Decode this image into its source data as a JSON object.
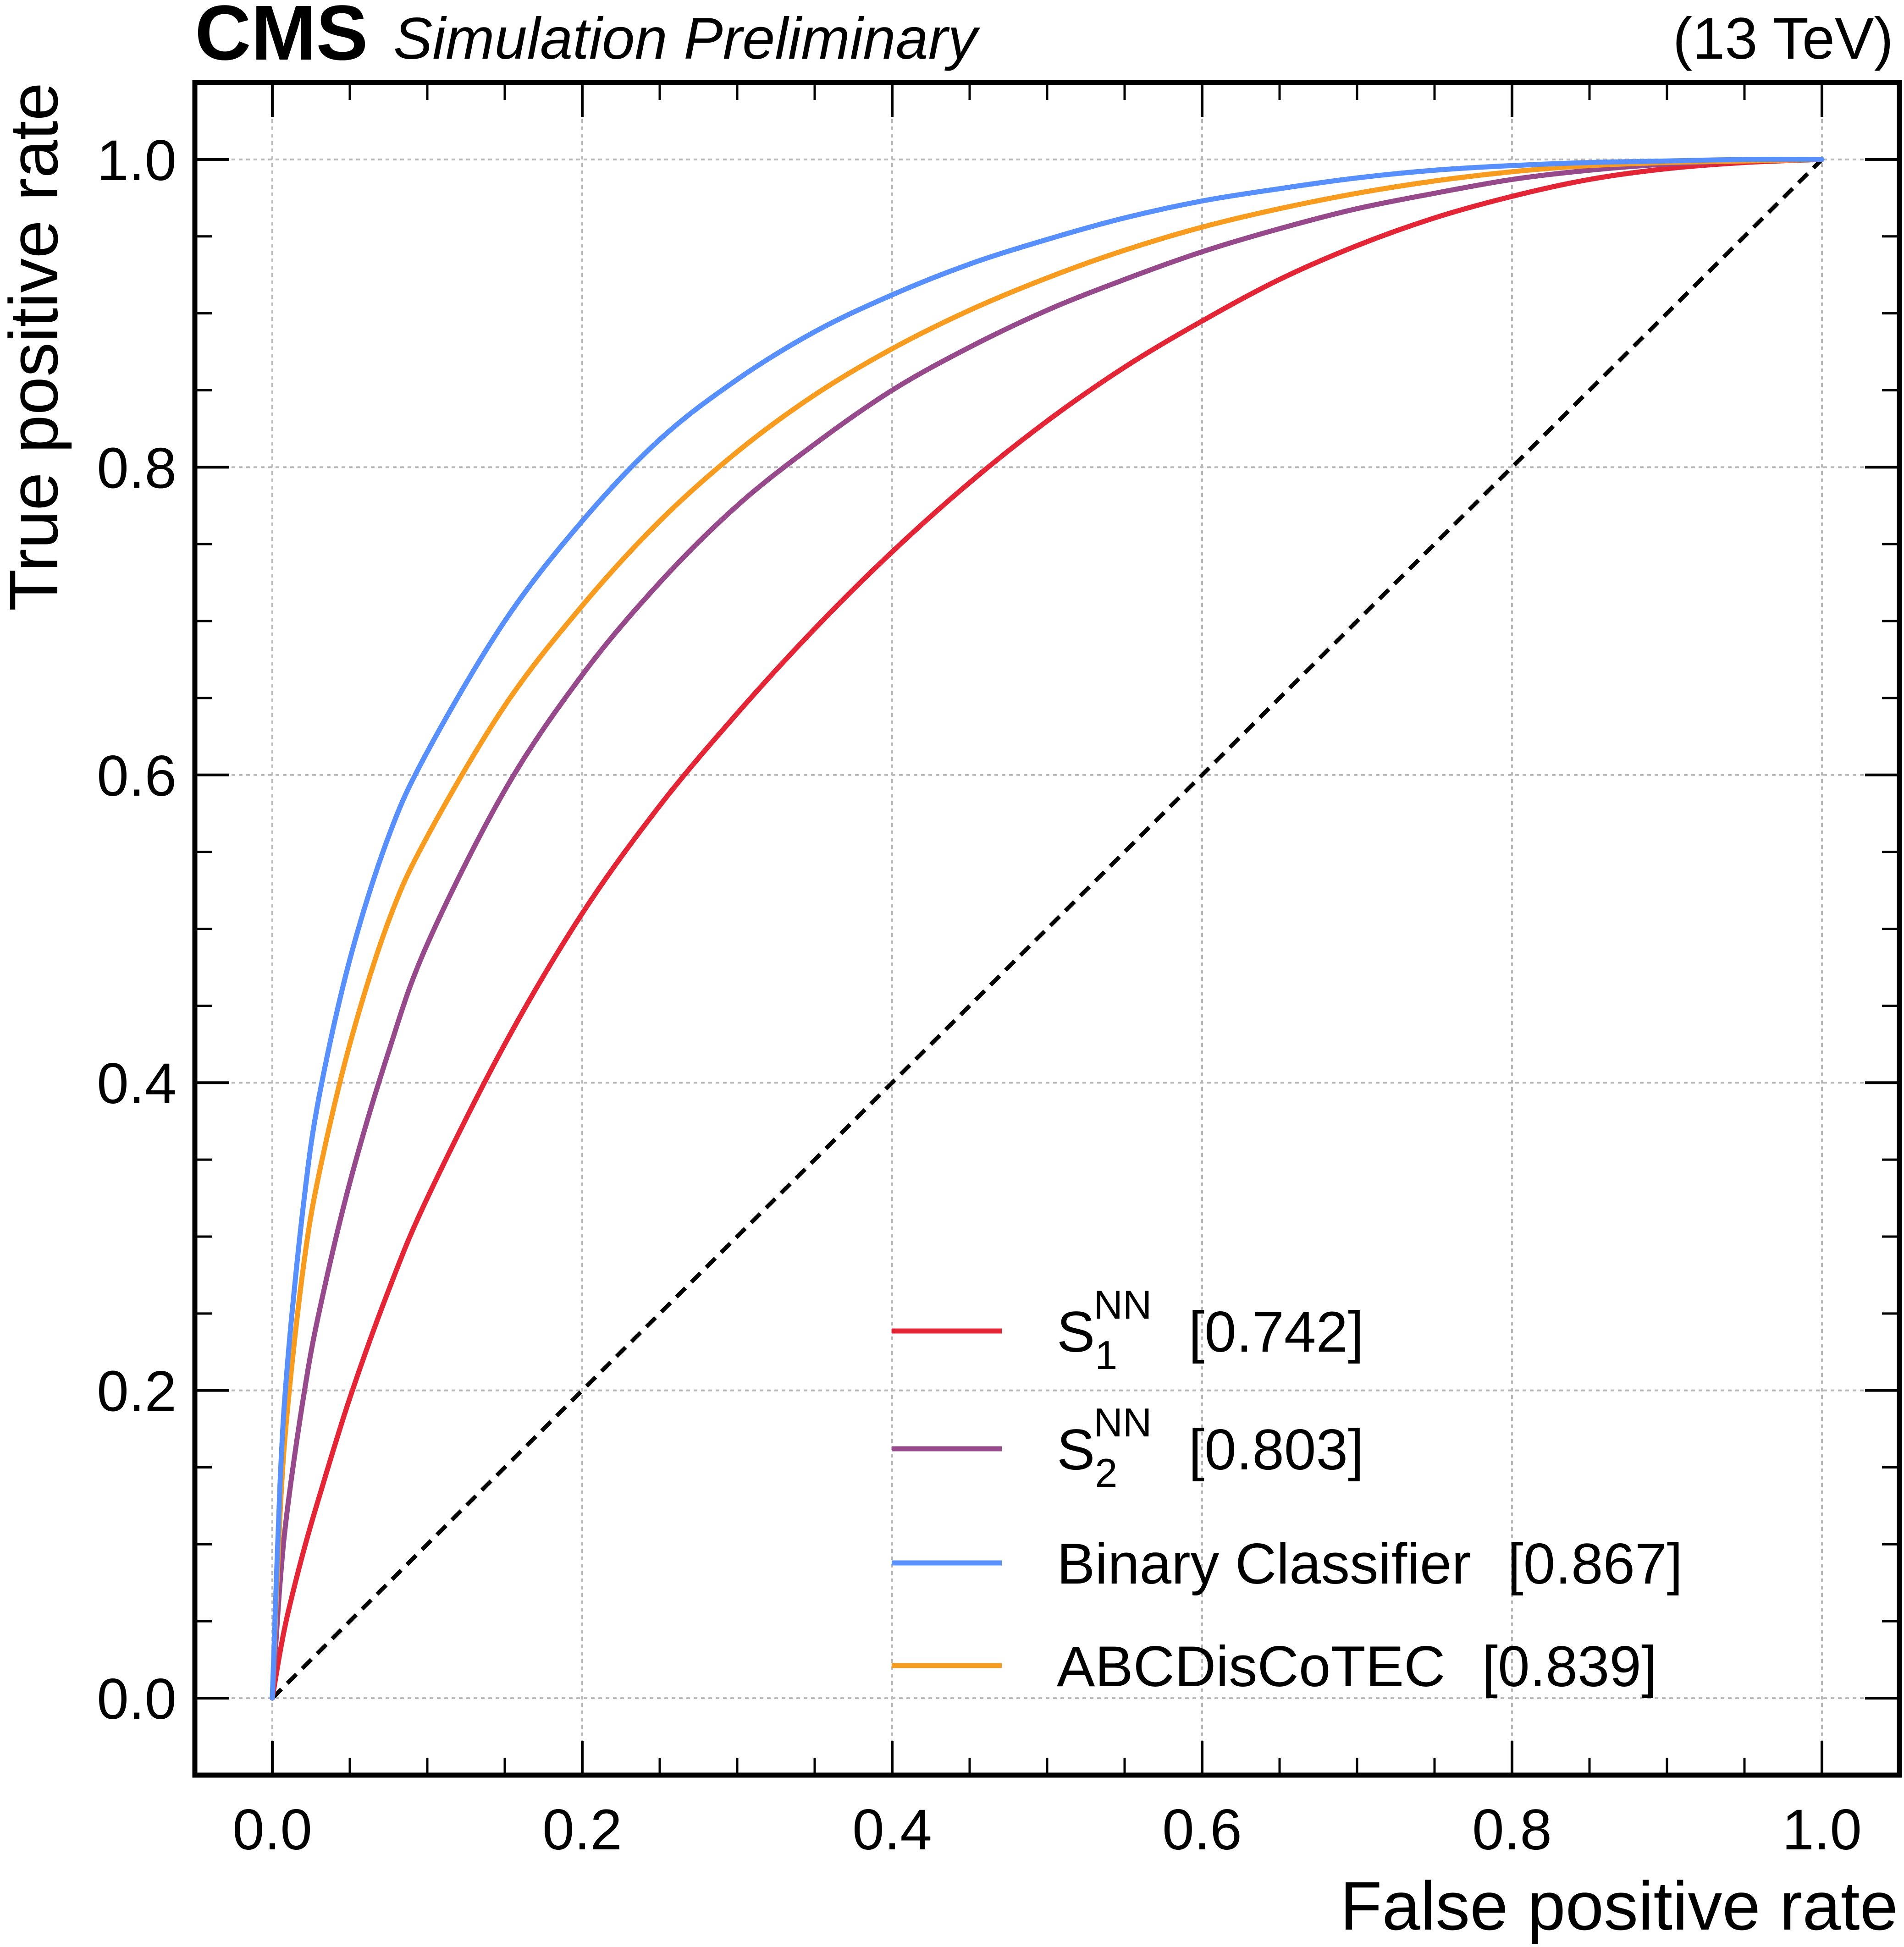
{
  "header": {
    "experiment": "CMS",
    "status": "Simulation Preliminary",
    "energy": "(13 TeV)"
  },
  "chart_data": {
    "type": "line",
    "xlabel": "False positive rate",
    "ylabel": "True positive rate",
    "xlim": [
      -0.05,
      1.05
    ],
    "ylim": [
      -0.05,
      1.05
    ],
    "xticks": [
      "0.0",
      "0.2",
      "0.4",
      "0.6",
      "0.8",
      "1.0"
    ],
    "yticks": [
      "0.0",
      "0.2",
      "0.4",
      "0.6",
      "0.8",
      "1.0"
    ],
    "grid": true,
    "legend_position": "bottom-right",
    "series": [
      {
        "legend_base": "S",
        "legend_sub": "1",
        "legend_sup": "NN",
        "auc": "[0.742]",
        "color": "#e42536",
        "x": [
          0,
          0.005,
          0.01,
          0.02,
          0.03,
          0.05,
          0.075,
          0.1,
          0.15,
          0.2,
          0.25,
          0.3,
          0.35,
          0.4,
          0.45,
          0.5,
          0.55,
          0.6,
          0.65,
          0.7,
          0.75,
          0.8,
          0.85,
          0.9,
          0.95,
          1.0
        ],
        "y": [
          0,
          0.03,
          0.055,
          0.095,
          0.13,
          0.195,
          0.265,
          0.325,
          0.425,
          0.51,
          0.58,
          0.64,
          0.695,
          0.745,
          0.79,
          0.83,
          0.865,
          0.895,
          0.922,
          0.944,
          0.962,
          0.976,
          0.987,
          0.994,
          0.998,
          1.0
        ]
      },
      {
        "legend_base": "S",
        "legend_sub": "2",
        "legend_sup": "NN",
        "auc": "[0.803]",
        "color": "#964a8b",
        "x": [
          0,
          0.005,
          0.01,
          0.02,
          0.03,
          0.05,
          0.075,
          0.1,
          0.15,
          0.2,
          0.25,
          0.3,
          0.35,
          0.4,
          0.45,
          0.5,
          0.55,
          0.6,
          0.65,
          0.7,
          0.75,
          0.8,
          0.85,
          0.9,
          0.95,
          1.0
        ],
        "y": [
          0,
          0.075,
          0.125,
          0.195,
          0.25,
          0.335,
          0.42,
          0.49,
          0.59,
          0.665,
          0.725,
          0.775,
          0.815,
          0.85,
          0.878,
          0.902,
          0.922,
          0.94,
          0.955,
          0.968,
          0.978,
          0.987,
          0.993,
          0.997,
          0.999,
          1.0
        ]
      },
      {
        "legend_base": "Binary Classifier",
        "legend_sub": "",
        "legend_sup": "",
        "auc": "[0.867]",
        "color": "#5790fc",
        "x": [
          0,
          0.005,
          0.01,
          0.02,
          0.03,
          0.05,
          0.075,
          0.1,
          0.15,
          0.2,
          0.25,
          0.3,
          0.35,
          0.4,
          0.45,
          0.5,
          0.55,
          0.6,
          0.65,
          0.7,
          0.75,
          0.8,
          0.85,
          0.9,
          0.95,
          1.0
        ],
        "y": [
          0,
          0.14,
          0.22,
          0.32,
          0.39,
          0.48,
          0.56,
          0.615,
          0.7,
          0.765,
          0.818,
          0.857,
          0.888,
          0.912,
          0.932,
          0.948,
          0.962,
          0.973,
          0.981,
          0.988,
          0.993,
          0.996,
          0.998,
          0.999,
          1.0,
          1.0
        ]
      },
      {
        "legend_base": "ABCDisCoTEC",
        "legend_sub": "",
        "legend_sup": "",
        "auc": "[0.839]",
        "color": "#f89c20",
        "x": [
          0,
          0.005,
          0.01,
          0.02,
          0.03,
          0.05,
          0.075,
          0.1,
          0.15,
          0.2,
          0.25,
          0.3,
          0.35,
          0.4,
          0.45,
          0.5,
          0.55,
          0.6,
          0.65,
          0.7,
          0.75,
          0.8,
          0.85,
          0.9,
          0.95,
          1.0
        ],
        "y": [
          0,
          0.12,
          0.19,
          0.28,
          0.34,
          0.425,
          0.505,
          0.56,
          0.645,
          0.71,
          0.765,
          0.81,
          0.847,
          0.877,
          0.902,
          0.923,
          0.941,
          0.956,
          0.968,
          0.978,
          0.986,
          0.992,
          0.996,
          0.998,
          0.999,
          1.0
        ]
      }
    ],
    "reference_line": {
      "style": "dashed",
      "color": "#000000",
      "x": [
        0,
        1
      ],
      "y": [
        0,
        1
      ]
    }
  }
}
